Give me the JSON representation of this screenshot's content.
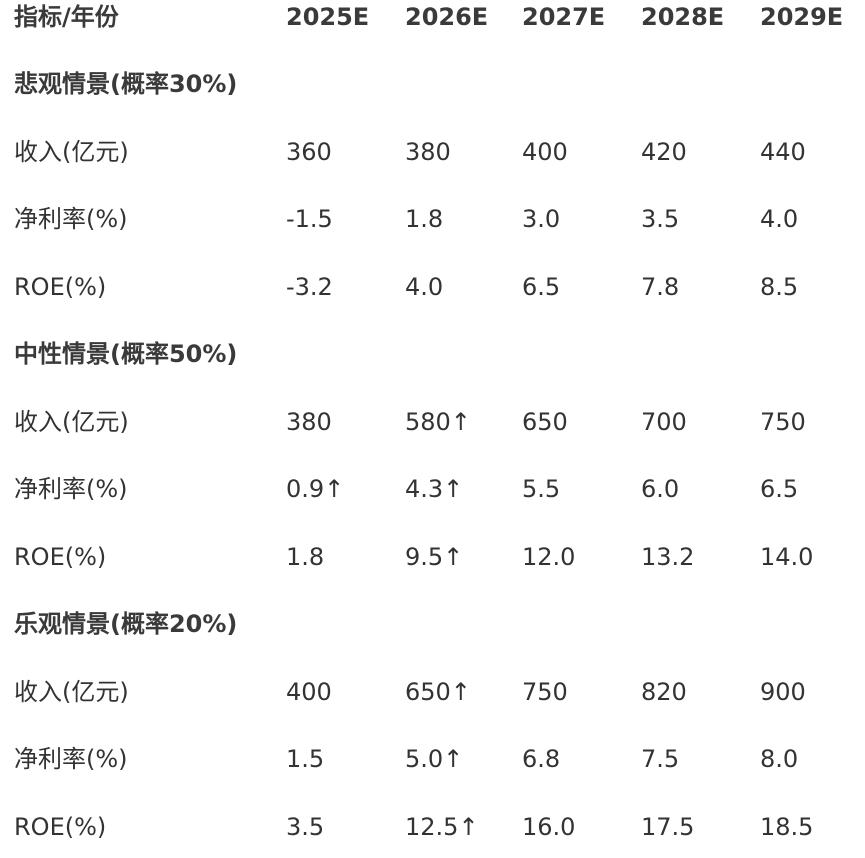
{
  "header": {
    "label": "指标/年份",
    "years": [
      "2025E",
      "2026E",
      "2027E",
      "2028E",
      "2029E"
    ]
  },
  "sections": [
    {
      "title": "悲观情景(概率30%)",
      "rows": [
        {
          "label": "收入(亿元)",
          "values": [
            "360",
            "380",
            "400",
            "420",
            "440"
          ]
        },
        {
          "label": "净利率(%)",
          "values": [
            "-1.5",
            "1.8",
            "3.0",
            "3.5",
            "4.0"
          ]
        },
        {
          "label": "ROE(%)",
          "values": [
            "-3.2",
            "4.0",
            "6.5",
            "7.8",
            "8.5"
          ]
        }
      ]
    },
    {
      "title": "中性情景(概率50%)",
      "rows": [
        {
          "label": "收入(亿元)",
          "values": [
            "380",
            "580↑",
            "650",
            "700",
            "750"
          ]
        },
        {
          "label": "净利率(%)",
          "values": [
            "0.9↑",
            "4.3↑",
            "5.5",
            "6.0",
            "6.5"
          ]
        },
        {
          "label": "ROE(%)",
          "values": [
            "1.8",
            "9.5↑",
            "12.0",
            "13.2",
            "14.0"
          ]
        }
      ]
    },
    {
      "title": "乐观情景(概率20%)",
      "rows": [
        {
          "label": "收入(亿元)",
          "values": [
            "400",
            "650↑",
            "750",
            "820",
            "900"
          ]
        },
        {
          "label": "净利率(%)",
          "values": [
            "1.5",
            "5.0↑",
            "6.8",
            "7.5",
            "8.0"
          ]
        },
        {
          "label": "ROE(%)",
          "values": [
            "3.5",
            "12.5↑",
            "16.0",
            "17.5",
            "18.5"
          ]
        }
      ]
    }
  ]
}
